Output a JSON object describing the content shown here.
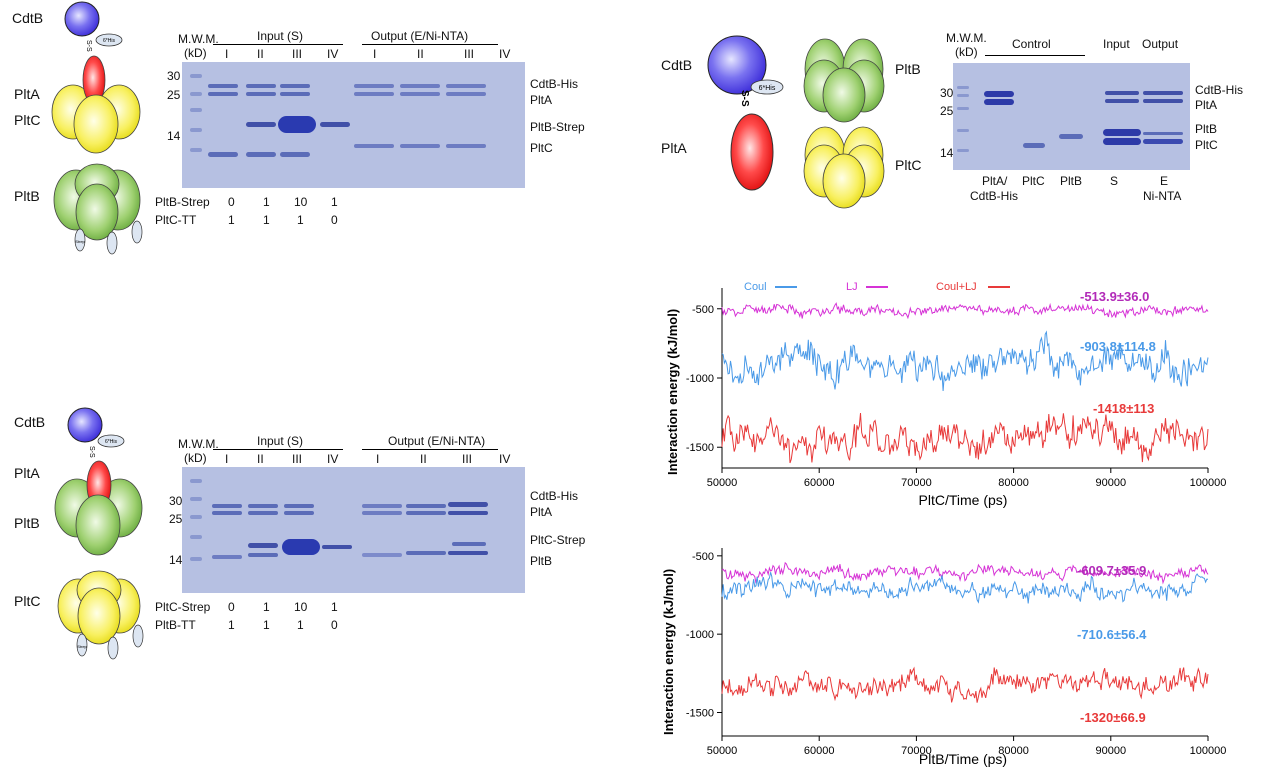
{
  "panel_a": {
    "proteins": [
      "CdtB",
      "PltA",
      "PltC",
      "PltB"
    ],
    "his_tag": "6*His",
    "ss_bond": "S-S",
    "strep_tag": "Strep",
    "mwm": "M.W.M.",
    "kd": "(kD)",
    "input_label": "Input (S)",
    "output_label": "Output (E/Ni-NTA)",
    "lanes": [
      "I",
      "II",
      "III",
      "IV",
      "I",
      "II",
      "III",
      "IV"
    ],
    "markers": [
      "30",
      "25",
      "14"
    ],
    "band_labels": [
      "CdtB-His",
      "PltA",
      "PltB-Strep",
      "PltC"
    ],
    "row1_label": "PltB-Strep",
    "row1_values": [
      "0",
      "1",
      "10",
      "1"
    ],
    "row2_label": "PltC-TT",
    "row2_values": [
      "1",
      "1",
      "1",
      "0"
    ]
  },
  "panel_b": {
    "proteins": [
      "CdtB",
      "PltA",
      "PltB",
      "PltC"
    ],
    "his_tag": "6*His",
    "ss_bond": "S-S",
    "strep_tag": "Strep",
    "mwm": "M.W.M.",
    "kd": "(kD)",
    "input_label": "Input (S)",
    "output_label": "Output (E/Ni-NTA)",
    "lanes": [
      "I",
      "II",
      "III",
      "IV",
      "I",
      "II",
      "III",
      "IV"
    ],
    "markers": [
      "30",
      "25",
      "14"
    ],
    "band_labels": [
      "CdtB-His",
      "PltA",
      "PltC-Strep",
      "PltB"
    ],
    "row1_label": "PltC-Strep",
    "row1_values": [
      "0",
      "1",
      "10",
      "1"
    ],
    "row2_label": "PltB-TT",
    "row2_values": [
      "1",
      "1",
      "1",
      "0"
    ]
  },
  "panel_c": {
    "proteins": [
      "CdtB",
      "PltA",
      "PltB",
      "PltC"
    ],
    "his_tag": "6*His",
    "ss_bond": "S-S",
    "mwm": "M.W.M.",
    "kd": "(kD)",
    "control_label": "Control",
    "input_label": "Input",
    "output_label": "Output",
    "markers": [
      "30",
      "25",
      "14"
    ],
    "band_labels": [
      "CdtB-His",
      "PltA",
      "PltB",
      "PltC"
    ],
    "lane_labels": [
      "PltA/",
      "CdtB-His",
      "PltC",
      "PltB",
      "S",
      "E",
      "Ni-NTA"
    ]
  },
  "chart_data": [
    {
      "type": "line",
      "xlabel": "PltC/Time (ps)",
      "ylabel": "Interaction energy  (kJ/mol)",
      "xlim": [
        50000,
        100000
      ],
      "ylim": [
        -1650,
        -350
      ],
      "xticks": [
        "50000",
        "60000",
        "70000",
        "80000",
        "90000",
        "100000"
      ],
      "yticks": [
        "-500",
        "-1000",
        "-1500"
      ],
      "legend": [
        "Coul",
        "LJ",
        "Coul+LJ"
      ],
      "series": [
        {
          "name": "LJ",
          "color": "#d633d6",
          "mean": -513.9,
          "sd": 36.0,
          "annotation": "-513.9±36.0"
        },
        {
          "name": "Coul",
          "color": "#4a9ae8",
          "mean": -903.8,
          "sd": 114.8,
          "annotation": "-903.8±114.8"
        },
        {
          "name": "Coul+LJ",
          "color": "#e83a3a",
          "mean": -1418,
          "sd": 113,
          "annotation": "-1418±113"
        }
      ]
    },
    {
      "type": "line",
      "xlabel": "PltB/Time (ps)",
      "ylabel": "Interaction energy  (kJ/mol)",
      "xlim": [
        50000,
        100000
      ],
      "ylim": [
        -1650,
        -450
      ],
      "xticks": [
        "50000",
        "60000",
        "70000",
        "80000",
        "90000",
        "100000"
      ],
      "yticks": [
        "-500",
        "-1000",
        "-1500"
      ],
      "series": [
        {
          "name": "LJ",
          "color": "#d633d6",
          "mean": -609.7,
          "sd": 35.9,
          "annotation": "-609.7±35.9"
        },
        {
          "name": "Coul",
          "color": "#4a9ae8",
          "mean": -710.6,
          "sd": 56.4,
          "annotation": "-710.6±56.4"
        },
        {
          "name": "Coul+LJ",
          "color": "#e83a3a",
          "mean": -1320,
          "sd": 66.9,
          "annotation": "-1320±66.9"
        }
      ]
    }
  ]
}
